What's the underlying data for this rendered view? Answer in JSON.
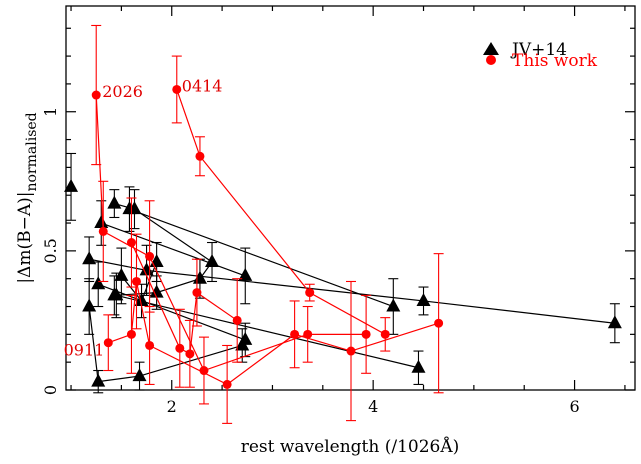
{
  "chart_data": {
    "type": "scatter",
    "xlabel": "rest wavelength (/1026Å)",
    "ylabel_main": "|Δm(B−A)|",
    "ylabel_sub": "normalised",
    "xlim": [
      0.95,
      6.6
    ],
    "ylim": [
      0,
      1.38
    ],
    "x_ticks": [
      2,
      4,
      6
    ],
    "y_ticks": [
      0,
      0.5,
      1
    ],
    "x_tick_labels": [
      "2",
      "4",
      "6"
    ],
    "y_tick_labels": [
      "0",
      "0.5",
      "1"
    ],
    "legend_position": "top-right",
    "colors": {
      "jv14": "#000000",
      "this_work": "#ff0000",
      "annotations": "#e00000"
    },
    "series": [
      {
        "name": "JV+14",
        "marker": "triangle",
        "color": "#000000",
        "tracks": [
          {
            "points": [
              [
                1.0,
                0.73,
                0.12
              ]
            ]
          },
          {
            "points": [
              [
                1.18,
                0.3,
                0.1
              ],
              [
                1.27,
                0.03,
                0.04
              ],
              [
                1.68,
                0.05,
                0.05
              ],
              [
                2.7,
                0.16,
                0.06
              ]
            ]
          },
          {
            "points": [
              [
                1.18,
                0.47,
                0.08
              ],
              [
                1.75,
                0.43,
                0.09
              ],
              [
                4.5,
                0.32,
                0.05
              ],
              [
                6.4,
                0.24,
                0.07
              ]
            ]
          },
          {
            "points": [
              [
                1.27,
                0.38,
                0.08
              ],
              [
                2.73,
                0.18,
                0.06
              ]
            ]
          },
          {
            "points": [
              [
                1.3,
                0.6,
                0.08
              ],
              [
                2.73,
                0.41,
                0.1
              ]
            ]
          },
          {
            "points": [
              [
                1.43,
                0.67,
                0.05
              ],
              [
                1.63,
                0.65,
                0.07
              ],
              [
                2.4,
                0.46,
                0.07
              ],
              [
                2.28,
                0.4,
                0.07
              ],
              [
                1.85,
                0.35,
                0.06
              ],
              [
                1.43,
                0.34,
                0.07
              ]
            ]
          },
          {
            "points": [
              [
                1.45,
                0.34,
                0.08
              ],
              [
                4.45,
                0.08,
                0.06
              ]
            ]
          },
          {
            "points": [
              [
                1.58,
                0.65,
                0.08
              ],
              [
                4.2,
                0.3,
                0.1
              ]
            ]
          },
          {
            "points": [
              [
                1.5,
                0.41,
                0.1
              ],
              [
                1.7,
                0.32,
                0.06
              ],
              [
                1.85,
                0.46,
                0.07
              ]
            ]
          }
        ]
      },
      {
        "name": "This work",
        "marker": "circle",
        "color": "#ff0000",
        "tracks": [
          {
            "label": "2026",
            "points": [
              [
                1.25,
                1.06,
                0.25
              ],
              [
                1.32,
                0.57,
                0.18
              ],
              [
                1.78,
                0.48,
                0.2
              ],
              [
                2.32,
                0.07,
                0.12
              ],
              [
                3.35,
                0.2,
                0.1
              ],
              [
                3.93,
                0.2,
                0.14
              ]
            ]
          },
          {
            "label": "0414",
            "points": [
              [
                2.05,
                1.08,
                0.12
              ],
              [
                2.28,
                0.84,
                0.07
              ],
              [
                3.37,
                0.35,
                0.03
              ],
              [
                4.12,
                0.2,
                0.06
              ]
            ]
          },
          {
            "label": "0911",
            "points": [
              [
                1.37,
                0.17,
                0.1
              ],
              [
                1.6,
                0.2,
                0.14
              ],
              [
                1.65,
                0.39,
                0.17
              ],
              [
                1.78,
                0.16,
                0.14
              ],
              [
                2.55,
                0.02,
                0.14
              ],
              [
                3.22,
                0.2,
                0.12
              ],
              [
                3.78,
                0.14,
                0.25
              ],
              [
                4.65,
                0.24,
                0.25
              ]
            ]
          },
          {
            "label": "",
            "points": [
              [
                1.6,
                0.53,
                0.16
              ],
              [
                2.08,
                0.15,
                0.14
              ],
              [
                2.18,
                0.13,
                0.12
              ],
              [
                2.25,
                0.35,
                0.12
              ],
              [
                2.65,
                0.25,
                0.15
              ]
            ]
          }
        ]
      }
    ],
    "annotations": [
      {
        "text": "2026",
        "x": 1.25,
        "y": 1.06
      },
      {
        "text": "0414",
        "x": 2.05,
        "y": 1.08
      },
      {
        "text": "0911",
        "x": 1.37,
        "y": 0.17
      }
    ]
  }
}
